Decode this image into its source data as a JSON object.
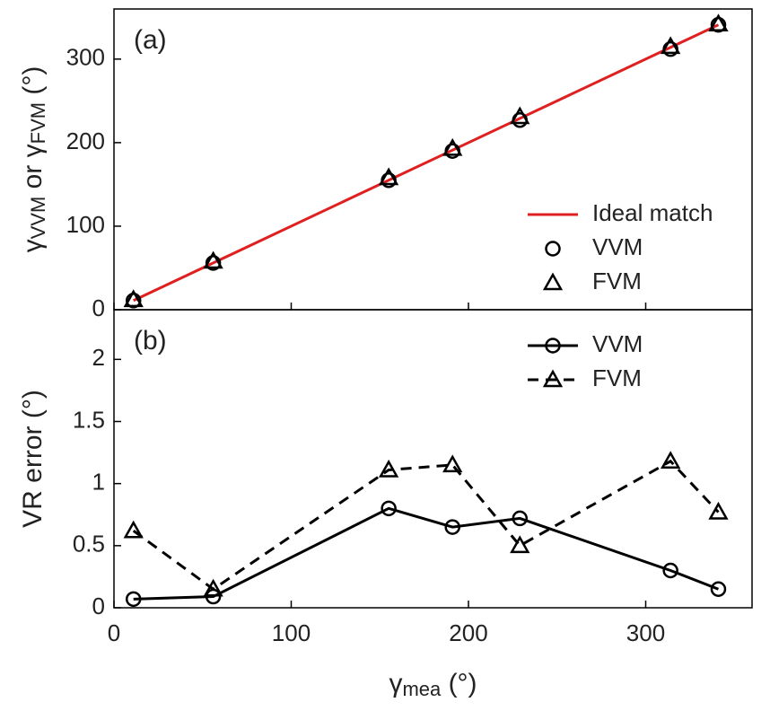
{
  "chart_data": [
    {
      "type": "scatter",
      "panel_label": "(a)",
      "y_label": [
        "γ",
        "VVM",
        " or γ",
        "FVM",
        " (°)"
      ],
      "xlim": [
        0,
        360
      ],
      "xticks": [
        0,
        100,
        200,
        300
      ],
      "show_xtick_labels": false,
      "ylim": [
        0,
        360
      ],
      "yticks": [
        0,
        100,
        200,
        300
      ],
      "legend": "lower right",
      "series": [
        {
          "name": "Ideal match",
          "color": "#e02020",
          "marker": "none",
          "line": "solid",
          "x": [
            11,
            341
          ],
          "values": [
            11,
            341
          ]
        },
        {
          "name": "VVM",
          "color": "#000000",
          "marker": "circle",
          "line": "none",
          "x": [
            11,
            56,
            155,
            191,
            229,
            314,
            341
          ],
          "values": [
            11,
            56,
            155,
            190,
            227,
            312,
            341
          ]
        },
        {
          "name": "FVM",
          "color": "#000000",
          "marker": "triangle",
          "line": "none",
          "x": [
            11,
            56,
            155,
            191,
            229,
            314,
            341
          ],
          "values": [
            12,
            58,
            158,
            193,
            231,
            315,
            342
          ]
        }
      ]
    },
    {
      "type": "line",
      "panel_label": "(b)",
      "y_label": [
        "VR error (°)"
      ],
      "x_label": [
        "γ",
        "mea",
        " (°)"
      ],
      "xlim": [
        0,
        360
      ],
      "xticks": [
        0,
        100,
        200,
        300
      ],
      "show_xtick_labels": true,
      "ylim": [
        0,
        2.4
      ],
      "yticks": [
        0,
        0.5,
        1,
        1.5,
        2
      ],
      "legend": "upper right",
      "series": [
        {
          "name": "VVM",
          "color": "#000000",
          "marker": "circle",
          "line": "solid",
          "x": [
            11,
            56,
            155,
            191,
            229,
            314,
            341
          ],
          "values": [
            0.07,
            0.09,
            0.8,
            0.65,
            0.72,
            0.3,
            0.15
          ]
        },
        {
          "name": "FVM",
          "color": "#000000",
          "marker": "triangle",
          "line": "dashed",
          "x": [
            11,
            56,
            155,
            191,
            229,
            314,
            341
          ],
          "values": [
            0.62,
            0.15,
            1.11,
            1.15,
            0.5,
            1.18,
            0.77
          ]
        }
      ]
    }
  ]
}
